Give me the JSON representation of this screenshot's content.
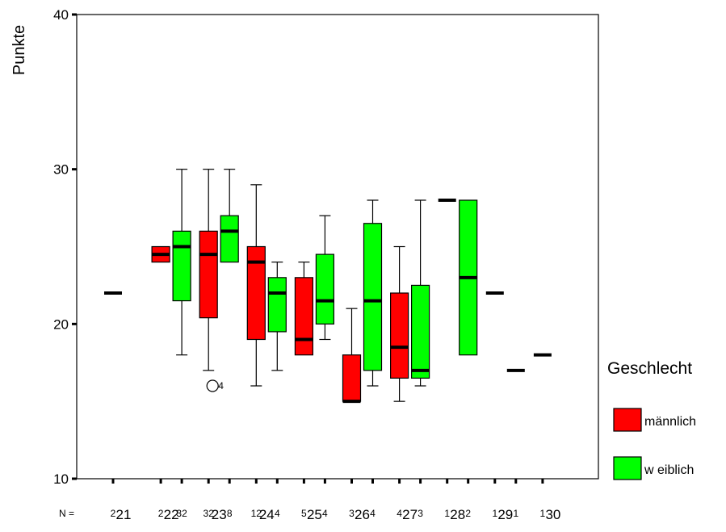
{
  "chart_data": {
    "type": "boxplot",
    "ylabel": "Punkte",
    "ylim": [
      10,
      40
    ],
    "yticks": [
      "10",
      "20",
      "30",
      "40"
    ],
    "categories": [
      "21",
      "22",
      "23",
      "24",
      "25",
      "26",
      "27",
      "28",
      "29",
      "30"
    ],
    "n_label": "N =",
    "legend": {
      "title": "Geschlecht",
      "position": "right",
      "entries": [
        {
          "name": "männlich",
          "color": "#ff0000"
        },
        {
          "name": "w eiblich",
          "color": "#00ff00"
        }
      ]
    },
    "series": [
      {
        "name": "männlich",
        "color": "#ff0000",
        "boxes": [
          {
            "category": "21",
            "n": "2",
            "q1": 22,
            "median": 22,
            "q3": 22,
            "min": 22,
            "max": 22
          },
          {
            "category": "22",
            "n": "2",
            "q1": 24,
            "median": 24.5,
            "q3": 25,
            "min": 24,
            "max": 25
          },
          {
            "category": "23",
            "n": "32",
            "q1": 20.4,
            "median": 24.5,
            "q3": 26,
            "min": 17,
            "max": 30,
            "outliers": [
              {
                "value": 16,
                "label": "4"
              }
            ]
          },
          {
            "category": "24",
            "n": "12",
            "q1": 19,
            "median": 24,
            "q3": 25,
            "min": 16,
            "max": 29
          },
          {
            "category": "25",
            "n": "5",
            "q1": 18,
            "median": 19,
            "q3": 23,
            "min": 18,
            "max": 24
          },
          {
            "category": "26",
            "n": "3",
            "q1": 15,
            "median": 15,
            "q3": 18,
            "min": 15,
            "max": 21
          },
          {
            "category": "27",
            "n": "4",
            "q1": 16.5,
            "median": 18.5,
            "q3": 22,
            "min": 15,
            "max": 25
          },
          {
            "category": "28",
            "n": "1",
            "q1": 28,
            "median": 28,
            "q3": 28,
            "min": 28,
            "max": 28
          },
          {
            "category": "29",
            "n": "1",
            "q1": 22,
            "median": 22,
            "q3": 22,
            "min": 22,
            "max": 22
          },
          {
            "category": "30",
            "n": "1",
            "q1": 18,
            "median": 18,
            "q3": 18,
            "min": 18,
            "max": 18
          }
        ]
      },
      {
        "name": "w eiblich",
        "color": "#00ff00",
        "boxes": [
          {
            "category": "22",
            "n": "32",
            "q1": 21.5,
            "median": 25,
            "q3": 26,
            "min": 18,
            "max": 30
          },
          {
            "category": "23",
            "n": "8",
            "q1": 24,
            "median": 26,
            "q3": 27,
            "min": 24,
            "max": 30
          },
          {
            "category": "24",
            "n": "4",
            "q1": 19.5,
            "median": 22,
            "q3": 23,
            "min": 17,
            "max": 24
          },
          {
            "category": "25",
            "n": "4",
            "q1": 20,
            "median": 21.5,
            "q3": 24.5,
            "min": 19,
            "max": 27
          },
          {
            "category": "26",
            "n": "4",
            "q1": 17,
            "median": 21.5,
            "q3": 26.5,
            "min": 16,
            "max": 28
          },
          {
            "category": "27",
            "n": "3",
            "q1": 16.5,
            "median": 17,
            "q3": 22.5,
            "min": 16,
            "max": 28
          },
          {
            "category": "28",
            "n": "2",
            "q1": 18,
            "median": 23,
            "q3": 28,
            "min": 18,
            "max": 28
          },
          {
            "category": "29",
            "n": "1",
            "q1": 17,
            "median": 17,
            "q3": 17,
            "min": 17,
            "max": 17
          }
        ]
      }
    ]
  }
}
